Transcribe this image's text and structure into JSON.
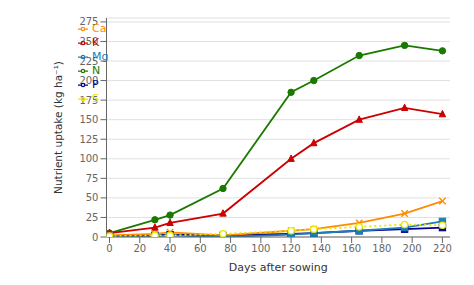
{
  "chart_data": {
    "type": "line",
    "xlabel": "Days after sowing",
    "ylabel": "Nutrient uptake (kg ha⁻¹)",
    "x": [
      0,
      30,
      40,
      75,
      120,
      135,
      165,
      195,
      220
    ],
    "series": [
      {
        "name": "N",
        "color": "#1a7a00",
        "marker": "circle",
        "line_style": "solid",
        "values": [
          5,
          22,
          28,
          62,
          185,
          200,
          232,
          245,
          238
        ]
      },
      {
        "name": "P",
        "color": "#00008b",
        "marker": "square",
        "line_style": "solid",
        "values": [
          1,
          2,
          3,
          2,
          4,
          5,
          8,
          10,
          12
        ]
      },
      {
        "name": "K",
        "color": "#cc0000",
        "marker": "triangle",
        "line_style": "solid",
        "values": [
          5,
          12,
          18,
          30,
          100,
          120,
          150,
          165,
          157
        ]
      },
      {
        "name": "Ca",
        "color": "#ff8c00",
        "marker": "x",
        "line_style": "solid",
        "values": [
          2,
          4,
          6,
          2,
          8,
          10,
          18,
          30,
          46
        ]
      },
      {
        "name": "Mg",
        "color": "#1e7db5",
        "marker": "square",
        "line_style": "solid",
        "values": [
          1,
          1,
          2,
          0,
          3,
          5,
          8,
          12,
          20
        ]
      },
      {
        "name": "S",
        "color": "#e8e800",
        "marker": "hollow_circle",
        "line_style": "dotted",
        "values": [
          1,
          2,
          2,
          4,
          8,
          10,
          13,
          16,
          15
        ]
      }
    ],
    "xlim": [
      -2,
      225
    ],
    "ylim": [
      0,
      280
    ],
    "xticks": [
      0,
      20,
      40,
      60,
      80,
      100,
      120,
      140,
      160,
      180,
      200,
      220
    ],
    "yticks": [
      0,
      25,
      50,
      75,
      100,
      125,
      150,
      175,
      200,
      225,
      250,
      275
    ],
    "grid": true,
    "legend": "upper left"
  }
}
